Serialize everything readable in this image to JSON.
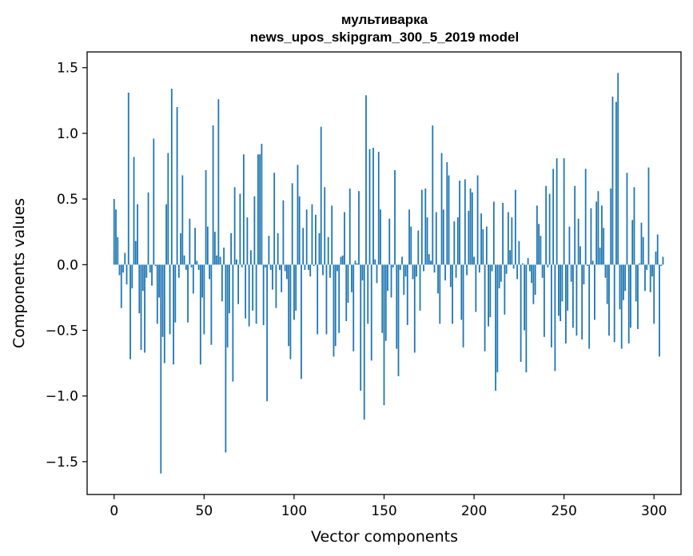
{
  "chart_data": {
    "type": "bar",
    "title": "мультиварка",
    "subtitle": "news_upos_skipgram_300_5_2019 model",
    "xlabel": "Vector components",
    "ylabel": "Components values",
    "xlim": [
      -15,
      315
    ],
    "ylim": [
      -1.75,
      1.62
    ],
    "xticks": [
      0,
      50,
      100,
      150,
      200,
      250,
      300
    ],
    "yticks": [
      -1.5,
      -1.0,
      -0.5,
      0.0,
      0.5,
      1.0,
      1.5
    ],
    "xtick_labels": [
      "0",
      "50",
      "100",
      "150",
      "200",
      "250",
      "300"
    ],
    "ytick_labels": [
      "−1.5",
      "−1.0",
      "−0.5",
      "0.0",
      "0.5",
      "1.0",
      "1.5"
    ],
    "bar_color": "#1f77b4",
    "values": [
      0.5,
      0.42,
      0.21,
      -0.08,
      -0.33,
      -0.06,
      0.09,
      -0.15,
      1.31,
      -0.72,
      -0.18,
      0.82,
      0.18,
      0.46,
      -0.37,
      -0.65,
      -0.2,
      -0.67,
      -0.1,
      0.55,
      -0.06,
      -0.16,
      0.96,
      -0.01,
      -0.45,
      -0.25,
      -1.59,
      -0.55,
      -0.75,
      0.46,
      0.85,
      -0.53,
      1.34,
      -0.76,
      -0.44,
      1.2,
      -0.1,
      0.24,
      0.68,
      0.07,
      -0.04,
      -0.44,
      0.35,
      -0.02,
      -0.22,
      0.28,
      0.03,
      -0.04,
      -0.76,
      -0.25,
      -0.53,
      0.72,
      0.29,
      -0.11,
      -0.61,
      1.06,
      0.25,
      0.07,
      1.26,
      0.06,
      -0.28,
      0.13,
      -1.43,
      -0.63,
      -0.37,
      0.24,
      -0.89,
      0.59,
      0.04,
      -0.3,
      0.54,
      -0.02,
      0.84,
      -0.41,
      0.36,
      -0.47,
      0.11,
      -0.35,
      0.52,
      -0.45,
      0.84,
      0.84,
      0.92,
      -0.46,
      -0.02,
      -1.04,
      0.22,
      -0.04,
      -0.19,
      0.7,
      -0.33,
      0.24,
      -0.04,
      -0.21,
      0.49,
      -0.05,
      -0.11,
      -0.62,
      -0.72,
      0.62,
      -0.42,
      -0.35,
      0.76,
      0.52,
      -0.87,
      0.28,
      -0.04,
      0.42,
      -0.04,
      -0.09,
      0.46,
      -0.01,
      0.38,
      -0.53,
      0.24,
      1.05,
      -0.08,
      0.59,
      -0.53,
      0.21,
      -0.1,
      0.45,
      -0.7,
      -0.62,
      -0.05,
      -0.52,
      0.06,
      0.07,
      0.4,
      -0.43,
      -0.29,
      0.58,
      -0.21,
      -0.66,
      0.03,
      0.01,
      0.56,
      -0.96,
      -0.12,
      -1.18,
      1.29,
      -0.45,
      0.88,
      -0.73,
      0.89,
      0.04,
      -0.14,
      0.86,
      0.42,
      -0.52,
      -1.07,
      -0.58,
      -0.2,
      0.35,
      -0.25,
      -0.02,
      0.72,
      -0.64,
      -0.85,
      -0.04,
      0.06,
      -0.23,
      -0.09,
      -0.46,
      0.42,
      0.29,
      -0.11,
      -0.67,
      -0.09,
      0.26,
      -0.35,
      0.57,
      -0.05,
      0.58,
      0.36,
      0.08,
      0.03,
      1.06,
      -0.06,
      0.4,
      -0.22,
      -0.45,
      0.85,
      0.42,
      -0.12,
      0.78,
      0.68,
      -0.17,
      -0.45,
      0.33,
      -0.1,
      0.36,
      0.64,
      -0.42,
      -0.63,
      0.65,
      -0.08,
      0.41,
      0.58,
      0.55,
      0.06,
      -0.36,
      0.68,
      -0.06,
      0.39,
      0.27,
      -0.66,
      0.29,
      -0.47,
      -0.4,
      -0.05,
      0.48,
      -0.96,
      -0.82,
      -0.18,
      -0.13,
      0.47,
      -0.38,
      -0.07,
      0.4,
      0.11,
      0.36,
      -0.03,
      0.57,
      -0.11,
      0.18,
      -0.74,
      0.01,
      -0.5,
      -0.82,
      0.05,
      -0.05,
      -0.14,
      -0.3,
      -0.23,
      0.45,
      0.31,
      0.22,
      -0.1,
      -0.55,
      0.6,
      -0.02,
      0.54,
      -0.63,
      0.73,
      -0.81,
      0.81,
      -0.39,
      -0.43,
      -0.28,
      0.81,
      -0.6,
      -0.35,
      0.29,
      -0.13,
      -0.48,
      0.6,
      -0.54,
      0.35,
      0.14,
      -0.57,
      -0.15,
      0.73,
      -0.01,
      -0.64,
      0.43,
      0.03,
      -0.42,
      0.48,
      0.56,
      0.13,
      0.45,
      0.28,
      -0.1,
      -0.3,
      -0.54,
      0.58,
      1.28,
      -0.59,
      1.24,
      1.46,
      -0.34,
      -0.64,
      -0.27,
      -0.2,
      0.7,
      -0.6,
      -0.48,
      0.34,
      0.59,
      -0.28,
      -0.49,
      0.01,
      0.32,
      0.21,
      -0.2,
      -0.04,
      0.74,
      -0.21,
      -0.09,
      -0.45,
      0.1,
      0.23,
      -0.7,
      -0.01,
      0.06
    ]
  }
}
